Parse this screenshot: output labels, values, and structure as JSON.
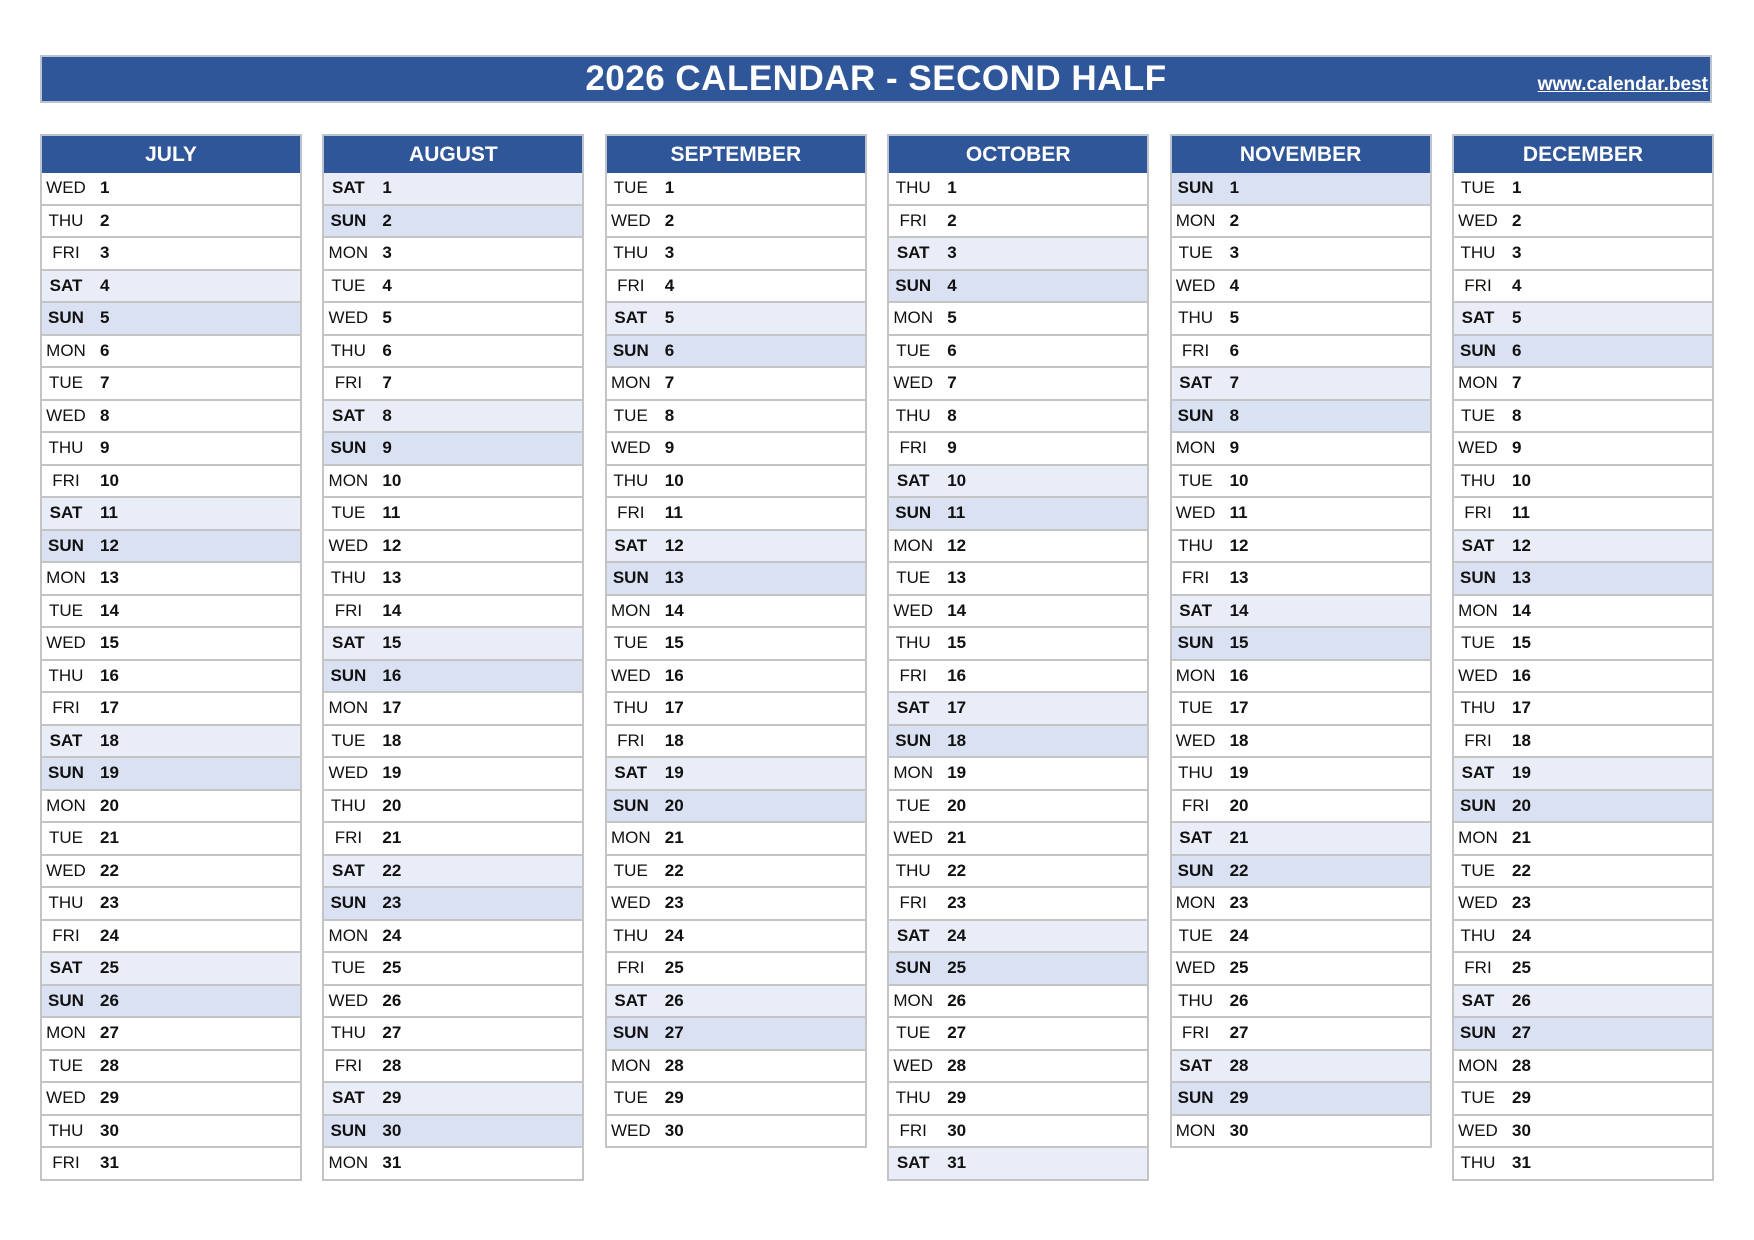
{
  "header": {
    "title": "2026 CALENDAR - SECOND HALF",
    "link": "www.calendar.best"
  },
  "colors": {
    "header_bg": "#30569a",
    "saturday_bg": "#e9edf7",
    "sunday_bg": "#d9e1f2"
  },
  "months": [
    {
      "name": "JULY",
      "days": [
        [
          "WED",
          "1"
        ],
        [
          "THU",
          "2"
        ],
        [
          "FRI",
          "3"
        ],
        [
          "SAT",
          "4"
        ],
        [
          "SUN",
          "5"
        ],
        [
          "MON",
          "6"
        ],
        [
          "TUE",
          "7"
        ],
        [
          "WED",
          "8"
        ],
        [
          "THU",
          "9"
        ],
        [
          "FRI",
          "10"
        ],
        [
          "SAT",
          "11"
        ],
        [
          "SUN",
          "12"
        ],
        [
          "MON",
          "13"
        ],
        [
          "TUE",
          "14"
        ],
        [
          "WED",
          "15"
        ],
        [
          "THU",
          "16"
        ],
        [
          "FRI",
          "17"
        ],
        [
          "SAT",
          "18"
        ],
        [
          "SUN",
          "19"
        ],
        [
          "MON",
          "20"
        ],
        [
          "TUE",
          "21"
        ],
        [
          "WED",
          "22"
        ],
        [
          "THU",
          "23"
        ],
        [
          "FRI",
          "24"
        ],
        [
          "SAT",
          "25"
        ],
        [
          "SUN",
          "26"
        ],
        [
          "MON",
          "27"
        ],
        [
          "TUE",
          "28"
        ],
        [
          "WED",
          "29"
        ],
        [
          "THU",
          "30"
        ],
        [
          "FRI",
          "31"
        ]
      ]
    },
    {
      "name": "AUGUST",
      "days": [
        [
          "SAT",
          "1"
        ],
        [
          "SUN",
          "2"
        ],
        [
          "MON",
          "3"
        ],
        [
          "TUE",
          "4"
        ],
        [
          "WED",
          "5"
        ],
        [
          "THU",
          "6"
        ],
        [
          "FRI",
          "7"
        ],
        [
          "SAT",
          "8"
        ],
        [
          "SUN",
          "9"
        ],
        [
          "MON",
          "10"
        ],
        [
          "TUE",
          "11"
        ],
        [
          "WED",
          "12"
        ],
        [
          "THU",
          "13"
        ],
        [
          "FRI",
          "14"
        ],
        [
          "SAT",
          "15"
        ],
        [
          "SUN",
          "16"
        ],
        [
          "MON",
          "17"
        ],
        [
          "TUE",
          "18"
        ],
        [
          "WED",
          "19"
        ],
        [
          "THU",
          "20"
        ],
        [
          "FRI",
          "21"
        ],
        [
          "SAT",
          "22"
        ],
        [
          "SUN",
          "23"
        ],
        [
          "MON",
          "24"
        ],
        [
          "TUE",
          "25"
        ],
        [
          "WED",
          "26"
        ],
        [
          "THU",
          "27"
        ],
        [
          "FRI",
          "28"
        ],
        [
          "SAT",
          "29"
        ],
        [
          "SUN",
          "30"
        ],
        [
          "MON",
          "31"
        ]
      ]
    },
    {
      "name": "SEPTEMBER",
      "days": [
        [
          "TUE",
          "1"
        ],
        [
          "WED",
          "2"
        ],
        [
          "THU",
          "3"
        ],
        [
          "FRI",
          "4"
        ],
        [
          "SAT",
          "5"
        ],
        [
          "SUN",
          "6"
        ],
        [
          "MON",
          "7"
        ],
        [
          "TUE",
          "8"
        ],
        [
          "WED",
          "9"
        ],
        [
          "THU",
          "10"
        ],
        [
          "FRI",
          "11"
        ],
        [
          "SAT",
          "12"
        ],
        [
          "SUN",
          "13"
        ],
        [
          "MON",
          "14"
        ],
        [
          "TUE",
          "15"
        ],
        [
          "WED",
          "16"
        ],
        [
          "THU",
          "17"
        ],
        [
          "FRI",
          "18"
        ],
        [
          "SAT",
          "19"
        ],
        [
          "SUN",
          "20"
        ],
        [
          "MON",
          "21"
        ],
        [
          "TUE",
          "22"
        ],
        [
          "WED",
          "23"
        ],
        [
          "THU",
          "24"
        ],
        [
          "FRI",
          "25"
        ],
        [
          "SAT",
          "26"
        ],
        [
          "SUN",
          "27"
        ],
        [
          "MON",
          "28"
        ],
        [
          "TUE",
          "29"
        ],
        [
          "WED",
          "30"
        ]
      ]
    },
    {
      "name": "OCTOBER",
      "days": [
        [
          "THU",
          "1"
        ],
        [
          "FRI",
          "2"
        ],
        [
          "SAT",
          "3"
        ],
        [
          "SUN",
          "4"
        ],
        [
          "MON",
          "5"
        ],
        [
          "TUE",
          "6"
        ],
        [
          "WED",
          "7"
        ],
        [
          "THU",
          "8"
        ],
        [
          "FRI",
          "9"
        ],
        [
          "SAT",
          "10"
        ],
        [
          "SUN",
          "11"
        ],
        [
          "MON",
          "12"
        ],
        [
          "TUE",
          "13"
        ],
        [
          "WED",
          "14"
        ],
        [
          "THU",
          "15"
        ],
        [
          "FRI",
          "16"
        ],
        [
          "SAT",
          "17"
        ],
        [
          "SUN",
          "18"
        ],
        [
          "MON",
          "19"
        ],
        [
          "TUE",
          "20"
        ],
        [
          "WED",
          "21"
        ],
        [
          "THU",
          "22"
        ],
        [
          "FRI",
          "23"
        ],
        [
          "SAT",
          "24"
        ],
        [
          "SUN",
          "25"
        ],
        [
          "MON",
          "26"
        ],
        [
          "TUE",
          "27"
        ],
        [
          "WED",
          "28"
        ],
        [
          "THU",
          "29"
        ],
        [
          "FRI",
          "30"
        ],
        [
          "SAT",
          "31"
        ]
      ]
    },
    {
      "name": "NOVEMBER",
      "days": [
        [
          "SUN",
          "1"
        ],
        [
          "MON",
          "2"
        ],
        [
          "TUE",
          "3"
        ],
        [
          "WED",
          "4"
        ],
        [
          "THU",
          "5"
        ],
        [
          "FRI",
          "6"
        ],
        [
          "SAT",
          "7"
        ],
        [
          "SUN",
          "8"
        ],
        [
          "MON",
          "9"
        ],
        [
          "TUE",
          "10"
        ],
        [
          "WED",
          "11"
        ],
        [
          "THU",
          "12"
        ],
        [
          "FRI",
          "13"
        ],
        [
          "SAT",
          "14"
        ],
        [
          "SUN",
          "15"
        ],
        [
          "MON",
          "16"
        ],
        [
          "TUE",
          "17"
        ],
        [
          "WED",
          "18"
        ],
        [
          "THU",
          "19"
        ],
        [
          "FRI",
          "20"
        ],
        [
          "SAT",
          "21"
        ],
        [
          "SUN",
          "22"
        ],
        [
          "MON",
          "23"
        ],
        [
          "TUE",
          "24"
        ],
        [
          "WED",
          "25"
        ],
        [
          "THU",
          "26"
        ],
        [
          "FRI",
          "27"
        ],
        [
          "SAT",
          "28"
        ],
        [
          "SUN",
          "29"
        ],
        [
          "MON",
          "30"
        ]
      ]
    },
    {
      "name": "DECEMBER",
      "days": [
        [
          "TUE",
          "1"
        ],
        [
          "WED",
          "2"
        ],
        [
          "THU",
          "3"
        ],
        [
          "FRI",
          "4"
        ],
        [
          "SAT",
          "5"
        ],
        [
          "SUN",
          "6"
        ],
        [
          "MON",
          "7"
        ],
        [
          "TUE",
          "8"
        ],
        [
          "WED",
          "9"
        ],
        [
          "THU",
          "10"
        ],
        [
          "FRI",
          "11"
        ],
        [
          "SAT",
          "12"
        ],
        [
          "SUN",
          "13"
        ],
        [
          "MON",
          "14"
        ],
        [
          "TUE",
          "15"
        ],
        [
          "WED",
          "16"
        ],
        [
          "THU",
          "17"
        ],
        [
          "FRI",
          "18"
        ],
        [
          "SAT",
          "19"
        ],
        [
          "SUN",
          "20"
        ],
        [
          "MON",
          "21"
        ],
        [
          "TUE",
          "22"
        ],
        [
          "WED",
          "23"
        ],
        [
          "THU",
          "24"
        ],
        [
          "FRI",
          "25"
        ],
        [
          "SAT",
          "26"
        ],
        [
          "SUN",
          "27"
        ],
        [
          "MON",
          "28"
        ],
        [
          "TUE",
          "29"
        ],
        [
          "WED",
          "30"
        ],
        [
          "THU",
          "31"
        ]
      ]
    }
  ]
}
